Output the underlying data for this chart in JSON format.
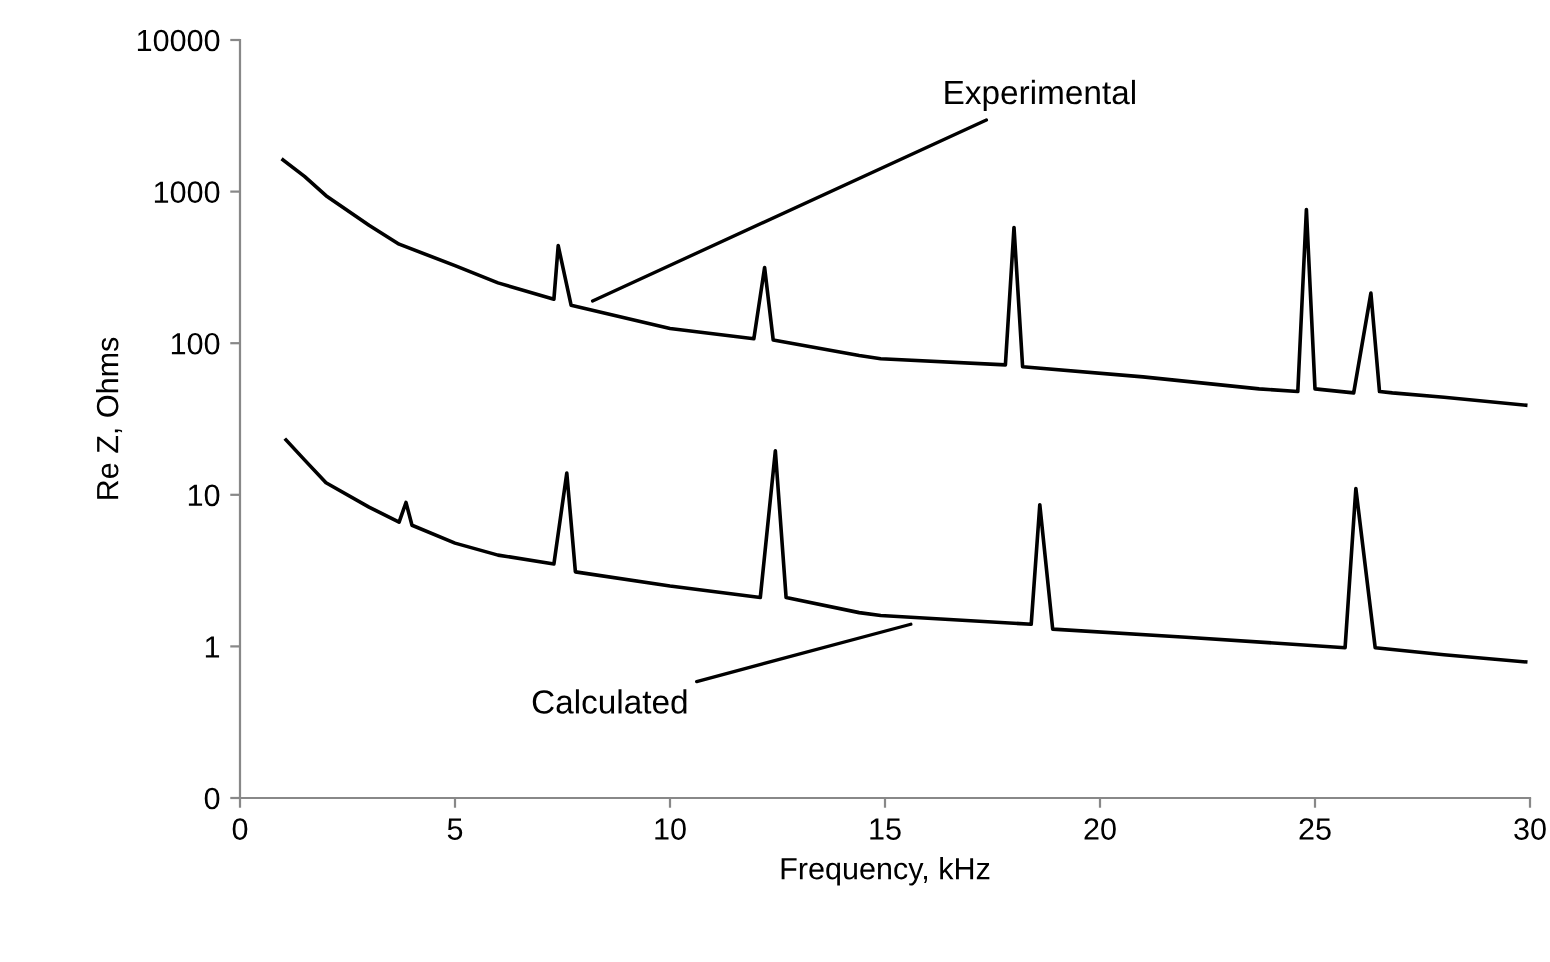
{
  "chart_data": {
    "type": "line",
    "xlabel": "Frequency, kHz",
    "ylabel": "Re Z, Ohms",
    "log": "y",
    "xlim": [
      0,
      30
    ],
    "xticks": [
      0,
      5,
      10,
      15,
      20,
      25,
      30
    ],
    "ylim": [
      0.1,
      10000
    ],
    "yticks": [
      {
        "value": 0.1,
        "label": "0"
      },
      1,
      10,
      100,
      1000,
      10000
    ],
    "grid": false,
    "legend": false,
    "marker": "none",
    "line_style": "solid",
    "series": [
      {
        "color": "#000000",
        "x": [
          1.0,
          1.5,
          2,
          3,
          3.7,
          5,
          6,
          7.3,
          7.4,
          7.7,
          10,
          11.95,
          12.2,
          12.4,
          14.4,
          14.9,
          17.8,
          18.0,
          18.2,
          21,
          23.7,
          24.6,
          24.8,
          25.0,
          25.9,
          26.3,
          26.5,
          26.8,
          28,
          29.9
        ],
        "values": [
          1620,
          1260,
          940,
          600,
          450,
          325,
          250,
          195,
          440,
          178,
          125,
          107,
          316,
          105,
          83,
          79,
          72,
          580,
          70,
          60,
          50,
          48,
          760,
          50,
          47,
          214,
          48,
          47,
          44,
          39
        ]
      },
      {
        "color": "#000000",
        "x": [
          1.07,
          1.5,
          2,
          3,
          3.7,
          3.86,
          4.0,
          5,
          6,
          7.3,
          7.6,
          7.8,
          10,
          12.1,
          12.45,
          12.7,
          14.4,
          14.9,
          18.4,
          18.6,
          18.9,
          22,
          25.7,
          25.95,
          26.4,
          28,
          29.9
        ],
        "values": [
          23,
          17,
          12,
          8.3,
          6.6,
          8.9,
          6.3,
          4.8,
          4.0,
          3.5,
          13.9,
          3.1,
          2.5,
          2.1,
          19.5,
          2.1,
          1.67,
          1.6,
          1.4,
          8.6,
          1.3,
          1.15,
          0.98,
          11,
          0.98,
          0.88,
          0.79
        ]
      }
    ],
    "annotations": [
      {
        "text": "Experimental",
        "x": 8.2,
        "y": 190
      },
      {
        "text": "Calculated",
        "x": 15.6,
        "y": 1.4
      }
    ]
  }
}
